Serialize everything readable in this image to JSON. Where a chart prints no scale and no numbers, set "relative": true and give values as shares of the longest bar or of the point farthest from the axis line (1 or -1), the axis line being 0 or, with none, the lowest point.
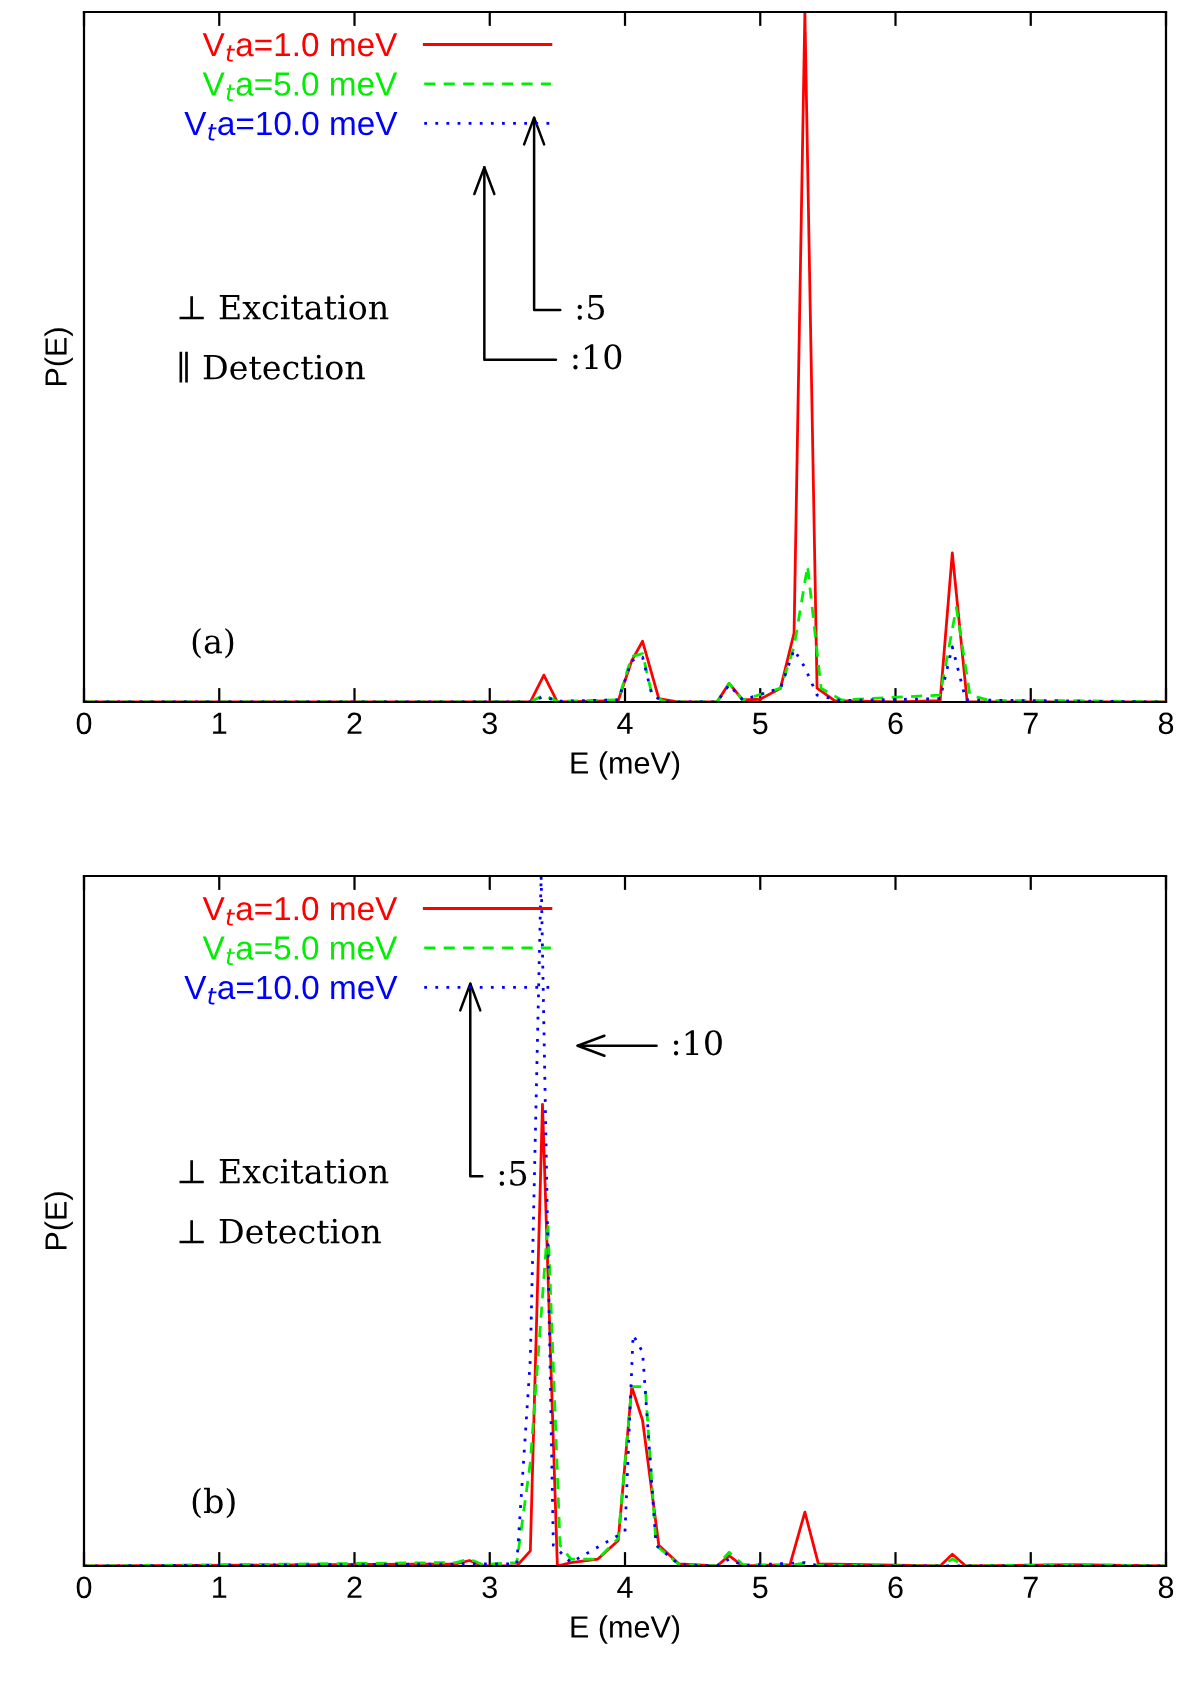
{
  "chart_data": [
    {
      "type": "line",
      "xlabel": "E (meV)",
      "ylabel": "P(E)",
      "relative": true,
      "xlim": [
        0,
        8
      ],
      "xticks": [
        0,
        1,
        2,
        3,
        4,
        5,
        6,
        7,
        8
      ],
      "legend": "top left",
      "annotations": [
        "⊥ Excitation",
        "∥ Detection",
        ":5",
        ":10",
        "(a)"
      ],
      "series": [
        {
          "name": "V$_{t}$a=1.0 meV",
          "color": "#ff0000",
          "line_style": "solid",
          "x": [
            0,
            3.3,
            3.4,
            3.5,
            3.95,
            4.05,
            4.13,
            4.25,
            4.4,
            4.68,
            4.77,
            4.87,
            5.0,
            5.15,
            5.25,
            5.33,
            5.42,
            5.55,
            6.0,
            6.33,
            6.42,
            6.53,
            8
          ],
          "values": [
            0,
            0,
            0.039,
            0,
            0.002,
            0.06,
            0.088,
            0.005,
            0,
            0,
            0.027,
            0.003,
            0.004,
            0.02,
            0.1,
            1,
            0.02,
            0.002,
            0,
            0.002,
            0.216,
            0,
            0
          ]
        },
        {
          "name": "V$_{t}$a=5.0 meV",
          "color": "#00ee00",
          "line_style": "dashed",
          "x": [
            0,
            3.3,
            3.4,
            3.5,
            3.95,
            4.05,
            4.13,
            4.2,
            4.3,
            4.68,
            4.77,
            4.87,
            5.15,
            5.25,
            5.35,
            5.45,
            5.6,
            6.33,
            6.45,
            6.55,
            6.7,
            7.3,
            8
          ],
          "values": [
            0,
            0,
            0.01,
            0.001,
            0.003,
            0.066,
            0.07,
            0.01,
            0,
            0,
            0.027,
            0.003,
            0.02,
            0.08,
            0.197,
            0.02,
            0.003,
            0.01,
            0.137,
            0.01,
            0.002,
            0.002,
            0
          ]
        },
        {
          "name": "V$_{t}$a=10.0 meV",
          "color": "#0000ff",
          "line_style": "dotted",
          "x": [
            0,
            3.3,
            3.4,
            3.5,
            3.95,
            4.05,
            4.13,
            4.2,
            4.3,
            4.68,
            4.77,
            4.87,
            5.15,
            5.25,
            5.33,
            5.42,
            5.6,
            6.33,
            6.42,
            6.52,
            8
          ],
          "values": [
            0,
            0,
            0.008,
            0.001,
            0.003,
            0.06,
            0.065,
            0.01,
            0,
            0,
            0.025,
            0.003,
            0.02,
            0.076,
            0.05,
            0.01,
            0.002,
            0.005,
            0.08,
            0.003,
            0
          ]
        }
      ]
    },
    {
      "type": "line",
      "xlabel": "E (meV)",
      "ylabel": "P(E)",
      "relative": true,
      "xlim": [
        0,
        8
      ],
      "xticks": [
        0,
        1,
        2,
        3,
        4,
        5,
        6,
        7,
        8
      ],
      "legend": "top left",
      "annotations": [
        "⊥ Excitation",
        "⊥ Detection",
        ":5",
        ":10",
        "(b)"
      ],
      "series": [
        {
          "name": "V$_{t}$a=1.0 meV",
          "color": "#ff0000",
          "line_style": "solid",
          "x": [
            0,
            2.75,
            2.85,
            2.95,
            3.2,
            3.3,
            3.39,
            3.5,
            3.6,
            3.8,
            3.95,
            4.05,
            4.13,
            4.25,
            4.4,
            4.68,
            4.77,
            4.87,
            5.22,
            5.33,
            5.43,
            6.33,
            6.42,
            6.52,
            7.3,
            8
          ],
          "values": [
            0,
            0.003,
            0.008,
            0,
            0,
            0.022,
            0.669,
            0,
            0.005,
            0.01,
            0.037,
            0.26,
            0.211,
            0.03,
            0.003,
            0,
            0.015,
            0,
            0.002,
            0.078,
            0.003,
            0,
            0.017,
            0,
            0.002,
            0
          ]
        },
        {
          "name": "V$_{t}$a=5.0 meV",
          "color": "#00ee00",
          "line_style": "dashed",
          "x": [
            0,
            2.75,
            2.85,
            2.95,
            3.2,
            3.3,
            3.43,
            3.52,
            3.6,
            3.8,
            3.95,
            4.05,
            4.15,
            4.23,
            4.4,
            4.68,
            4.77,
            4.87,
            5.22,
            5.33,
            5.43,
            6.33,
            6.42,
            6.52,
            7.3,
            8
          ],
          "values": [
            0,
            0.005,
            0.01,
            0.002,
            0.005,
            0.15,
            0.497,
            0.03,
            0.01,
            0.01,
            0.04,
            0.26,
            0.26,
            0.03,
            0.002,
            0,
            0.02,
            0.002,
            0.001,
            0.004,
            0.001,
            0,
            0.01,
            0,
            0.002,
            0
          ]
        },
        {
          "name": "V$_{t}$a=10.0 meV",
          "color": "#0000ff",
          "line_style": "dotted",
          "x": [
            0,
            2.85,
            3.2,
            3.3,
            3.38,
            3.47,
            3.6,
            4.0,
            4.06,
            4.13,
            4.23,
            4.4,
            4.68,
            4.77,
            4.87,
            5.33,
            5.43,
            8
          ],
          "values": [
            0,
            0.003,
            0.003,
            0.3,
            1,
            0.03,
            0.005,
            0.05,
            0.335,
            0.31,
            0.03,
            0.002,
            0,
            0.01,
            0.001,
            0.005,
            0,
            0
          ]
        }
      ]
    }
  ]
}
